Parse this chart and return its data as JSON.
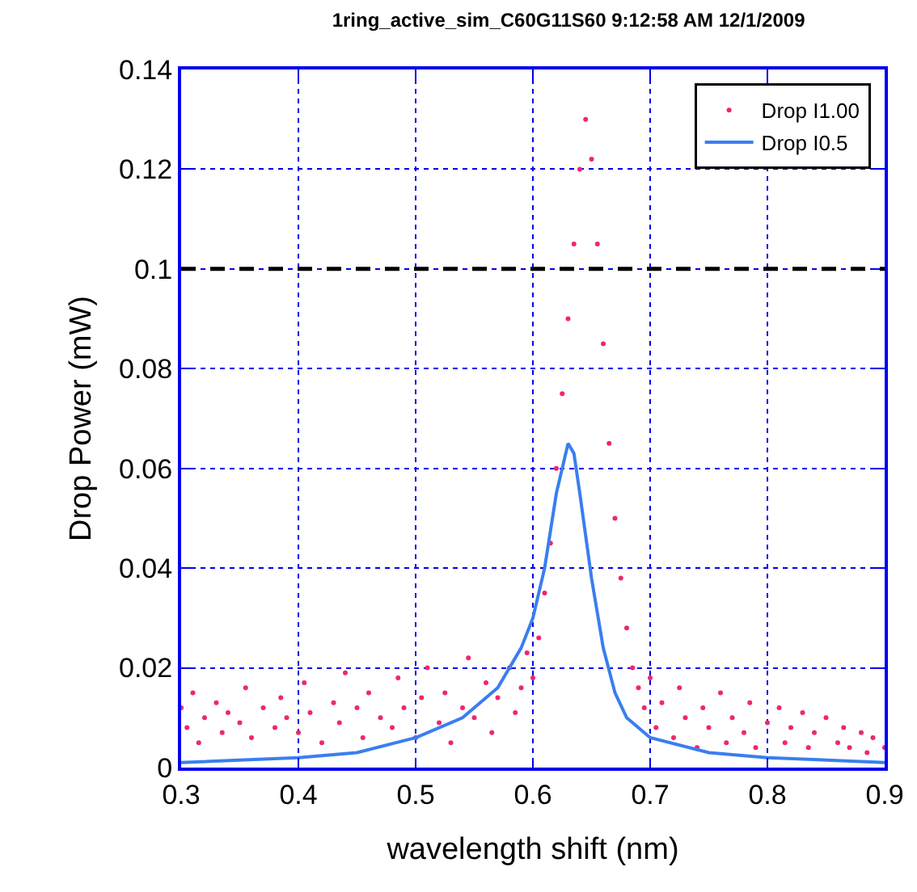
{
  "chart_data": {
    "type": "scatter",
    "title": "1ring_active_sim_C60G11S60 9:12:58 AM 12/1/2009",
    "xlabel": "wavelength shift (nm)",
    "ylabel": "Drop Power (mW)",
    "xlim": [
      0.3,
      0.9
    ],
    "xticks": [
      0.3,
      0.4,
      0.5,
      0.6,
      0.7,
      0.8,
      0.9
    ],
    "ylim": [
      0,
      0.14
    ],
    "yticks": [
      0,
      0.02,
      0.04,
      0.06,
      0.08,
      0.1,
      0.12,
      0.14
    ],
    "grid": true,
    "legend": "top right",
    "ref_lines": [
      {
        "axis": "y",
        "value": 0.1,
        "color": "#000000",
        "line_style": "dashed"
      }
    ],
    "series": [
      {
        "name": "Drop I1.00",
        "marker": "circle",
        "color": "#f0266e",
        "x": [
          0.3,
          0.305,
          0.31,
          0.315,
          0.32,
          0.33,
          0.335,
          0.34,
          0.35,
          0.355,
          0.36,
          0.37,
          0.38,
          0.385,
          0.39,
          0.4,
          0.405,
          0.41,
          0.42,
          0.43,
          0.435,
          0.44,
          0.45,
          0.455,
          0.46,
          0.47,
          0.48,
          0.485,
          0.49,
          0.5,
          0.505,
          0.51,
          0.52,
          0.525,
          0.53,
          0.54,
          0.545,
          0.55,
          0.56,
          0.565,
          0.57,
          0.58,
          0.585,
          0.59,
          0.595,
          0.6,
          0.605,
          0.61,
          0.615,
          0.62,
          0.625,
          0.63,
          0.635,
          0.64,
          0.645,
          0.65,
          0.655,
          0.66,
          0.665,
          0.67,
          0.675,
          0.68,
          0.685,
          0.69,
          0.695,
          0.7,
          0.705,
          0.71,
          0.72,
          0.725,
          0.73,
          0.74,
          0.745,
          0.75,
          0.76,
          0.765,
          0.77,
          0.78,
          0.785,
          0.79,
          0.8,
          0.81,
          0.815,
          0.82,
          0.83,
          0.835,
          0.84,
          0.85,
          0.86,
          0.865,
          0.87,
          0.88,
          0.885,
          0.89,
          0.9
        ],
        "values": [
          0.012,
          0.008,
          0.015,
          0.005,
          0.01,
          0.013,
          0.007,
          0.011,
          0.009,
          0.016,
          0.006,
          0.012,
          0.008,
          0.014,
          0.01,
          0.007,
          0.017,
          0.011,
          0.005,
          0.013,
          0.009,
          0.019,
          0.012,
          0.006,
          0.015,
          0.01,
          0.008,
          0.018,
          0.012,
          0.006,
          0.014,
          0.02,
          0.009,
          0.015,
          0.005,
          0.012,
          0.022,
          0.01,
          0.017,
          0.007,
          0.014,
          0.02,
          0.011,
          0.016,
          0.023,
          0.018,
          0.026,
          0.035,
          0.045,
          0.06,
          0.075,
          0.09,
          0.105,
          0.12,
          0.13,
          0.122,
          0.105,
          0.085,
          0.065,
          0.05,
          0.038,
          0.028,
          0.02,
          0.016,
          0.012,
          0.018,
          0.008,
          0.013,
          0.006,
          0.016,
          0.01,
          0.004,
          0.012,
          0.008,
          0.015,
          0.005,
          0.01,
          0.007,
          0.013,
          0.004,
          0.009,
          0.012,
          0.005,
          0.008,
          0.011,
          0.004,
          0.007,
          0.01,
          0.005,
          0.008,
          0.004,
          0.007,
          0.003,
          0.006,
          0.004
        ]
      },
      {
        "name": "Drop I0.5",
        "type": "line",
        "marker": "none",
        "line_style": "solid",
        "color": "#3a7ef0",
        "x": [
          0.3,
          0.4,
          0.45,
          0.5,
          0.54,
          0.57,
          0.59,
          0.6,
          0.61,
          0.62,
          0.63,
          0.635,
          0.64,
          0.65,
          0.66,
          0.67,
          0.68,
          0.7,
          0.75,
          0.8,
          0.9
        ],
        "values": [
          0.001,
          0.002,
          0.003,
          0.006,
          0.01,
          0.016,
          0.024,
          0.03,
          0.04,
          0.055,
          0.065,
          0.063,
          0.055,
          0.038,
          0.024,
          0.015,
          0.01,
          0.006,
          0.003,
          0.002,
          0.001
        ]
      }
    ]
  }
}
